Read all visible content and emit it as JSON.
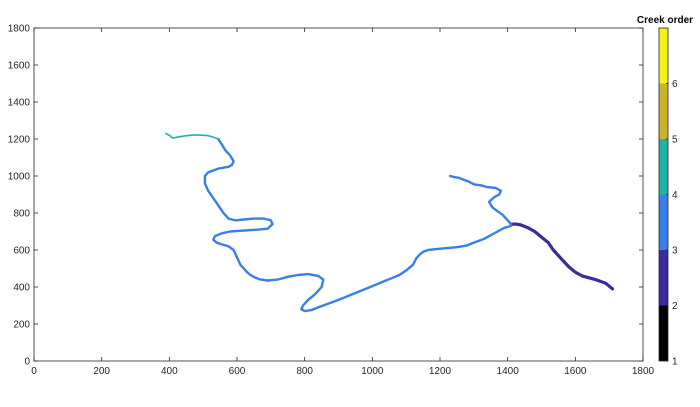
{
  "chart_data": {
    "type": "line",
    "description_free": true,
    "xlim": [
      0,
      1800
    ],
    "ylim": [
      0,
      1800
    ],
    "x_ticks": [
      0,
      200,
      400,
      600,
      800,
      1000,
      1200,
      1400,
      1600,
      1800
    ],
    "y_ticks": [
      0,
      200,
      400,
      600,
      800,
      1000,
      1200,
      1400,
      1600,
      1800
    ],
    "grid": false,
    "colorbar": {
      "title": "Creek order",
      "ticks": [
        1,
        2,
        3,
        4,
        5,
        6
      ],
      "range": [
        1,
        7
      ],
      "colors": [
        "#000000",
        "#3c2a9c",
        "#3a7ee8",
        "#22b3a7",
        "#c8b32a",
        "#f8f019"
      ]
    },
    "series": [
      {
        "order": 2,
        "x": [
          1710,
          1690,
          1660,
          1640,
          1620,
          1600,
          1580,
          1565,
          1550,
          1535,
          1520,
          1500,
          1480,
          1460,
          1440,
          1425,
          1410
        ],
        "y": [
          390,
          420,
          440,
          450,
          460,
          480,
          510,
          540,
          570,
          600,
          640,
          670,
          700,
          720,
          735,
          740,
          740
        ]
      },
      {
        "order": 3,
        "x": [
          1410,
          1390,
          1370,
          1350,
          1330,
          1300,
          1280,
          1250,
          1220,
          1190,
          1165,
          1150,
          1140,
          1130,
          1120,
          1100,
          1080,
          1060,
          1040,
          1020,
          1000,
          980,
          960,
          940,
          920,
          900,
          870,
          840,
          820,
          800,
          790,
          795,
          810,
          830,
          850,
          855,
          840,
          810,
          780,
          750,
          720,
          690,
          670,
          655,
          640,
          630,
          620,
          610,
          600,
          590,
          575,
          555,
          540,
          530,
          535,
          555,
          580,
          620,
          660,
          690,
          705,
          700,
          680,
          650,
          620,
          595,
          575,
          560,
          545,
          530,
          515,
          505,
          505,
          515,
          530,
          545,
          560,
          575,
          585,
          590,
          580,
          565,
          555,
          548,
          545
        ],
        "y": [
          730,
          720,
          700,
          680,
          660,
          640,
          625,
          615,
          610,
          605,
          600,
          590,
          575,
          555,
          520,
          490,
          465,
          450,
          435,
          420,
          405,
          390,
          375,
          360,
          345,
          330,
          310,
          290,
          275,
          270,
          280,
          300,
          330,
          360,
          400,
          440,
          460,
          470,
          465,
          455,
          440,
          435,
          440,
          450,
          465,
          480,
          500,
          520,
          560,
          600,
          620,
          630,
          640,
          655,
          675,
          690,
          700,
          705,
          710,
          715,
          740,
          760,
          770,
          770,
          765,
          760,
          770,
          800,
          840,
          880,
          920,
          960,
          1000,
          1020,
          1030,
          1040,
          1045,
          1050,
          1060,
          1080,
          1110,
          1140,
          1170,
          1190,
          1200
        ]
      },
      {
        "order": 3,
        "x": [
          1410,
          1400,
          1385,
          1370,
          1355,
          1345,
          1360,
          1375,
          1380,
          1365,
          1340,
          1320,
          1300,
          1285,
          1270,
          1255,
          1240,
          1230
        ],
        "y": [
          740,
          760,
          790,
          810,
          830,
          860,
          885,
          900,
          920,
          935,
          940,
          950,
          955,
          970,
          980,
          990,
          995,
          1000
        ]
      },
      {
        "order": 4,
        "x": [
          545,
          530,
          515,
          500,
          480,
          460,
          440,
          425,
          410,
          400,
          390
        ],
        "y": [
          1200,
          1210,
          1218,
          1220,
          1222,
          1220,
          1215,
          1210,
          1205,
          1220,
          1230
        ]
      }
    ]
  }
}
